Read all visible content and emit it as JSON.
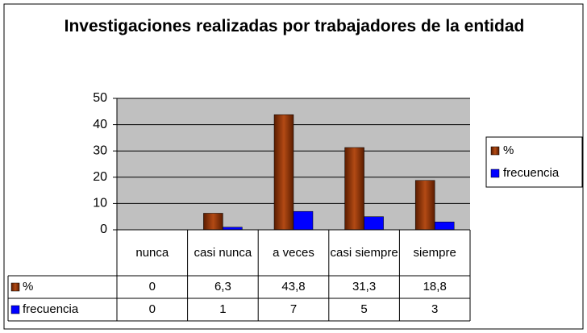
{
  "chart_data": {
    "type": "bar",
    "title": "Investigaciones realizadas por trabajadores de la entidad",
    "categories": [
      "nunca",
      "casi nunca",
      "a veces",
      "casi siempre",
      "siempre"
    ],
    "series": [
      {
        "name": "%",
        "color": "#993300",
        "values": [
          0,
          6.3,
          43.8,
          31.3,
          18.8
        ],
        "value_labels": [
          "0",
          "6,3",
          "43,8",
          "31,3",
          "18,8"
        ]
      },
      {
        "name": "frecuencia",
        "color": "#0000ff",
        "values": [
          0,
          1,
          7,
          5,
          3
        ]
      }
    ],
    "ylim": [
      0,
      50
    ],
    "yticks": [
      0,
      10,
      20,
      30,
      40,
      50
    ],
    "grid": true,
    "legend": "right"
  }
}
